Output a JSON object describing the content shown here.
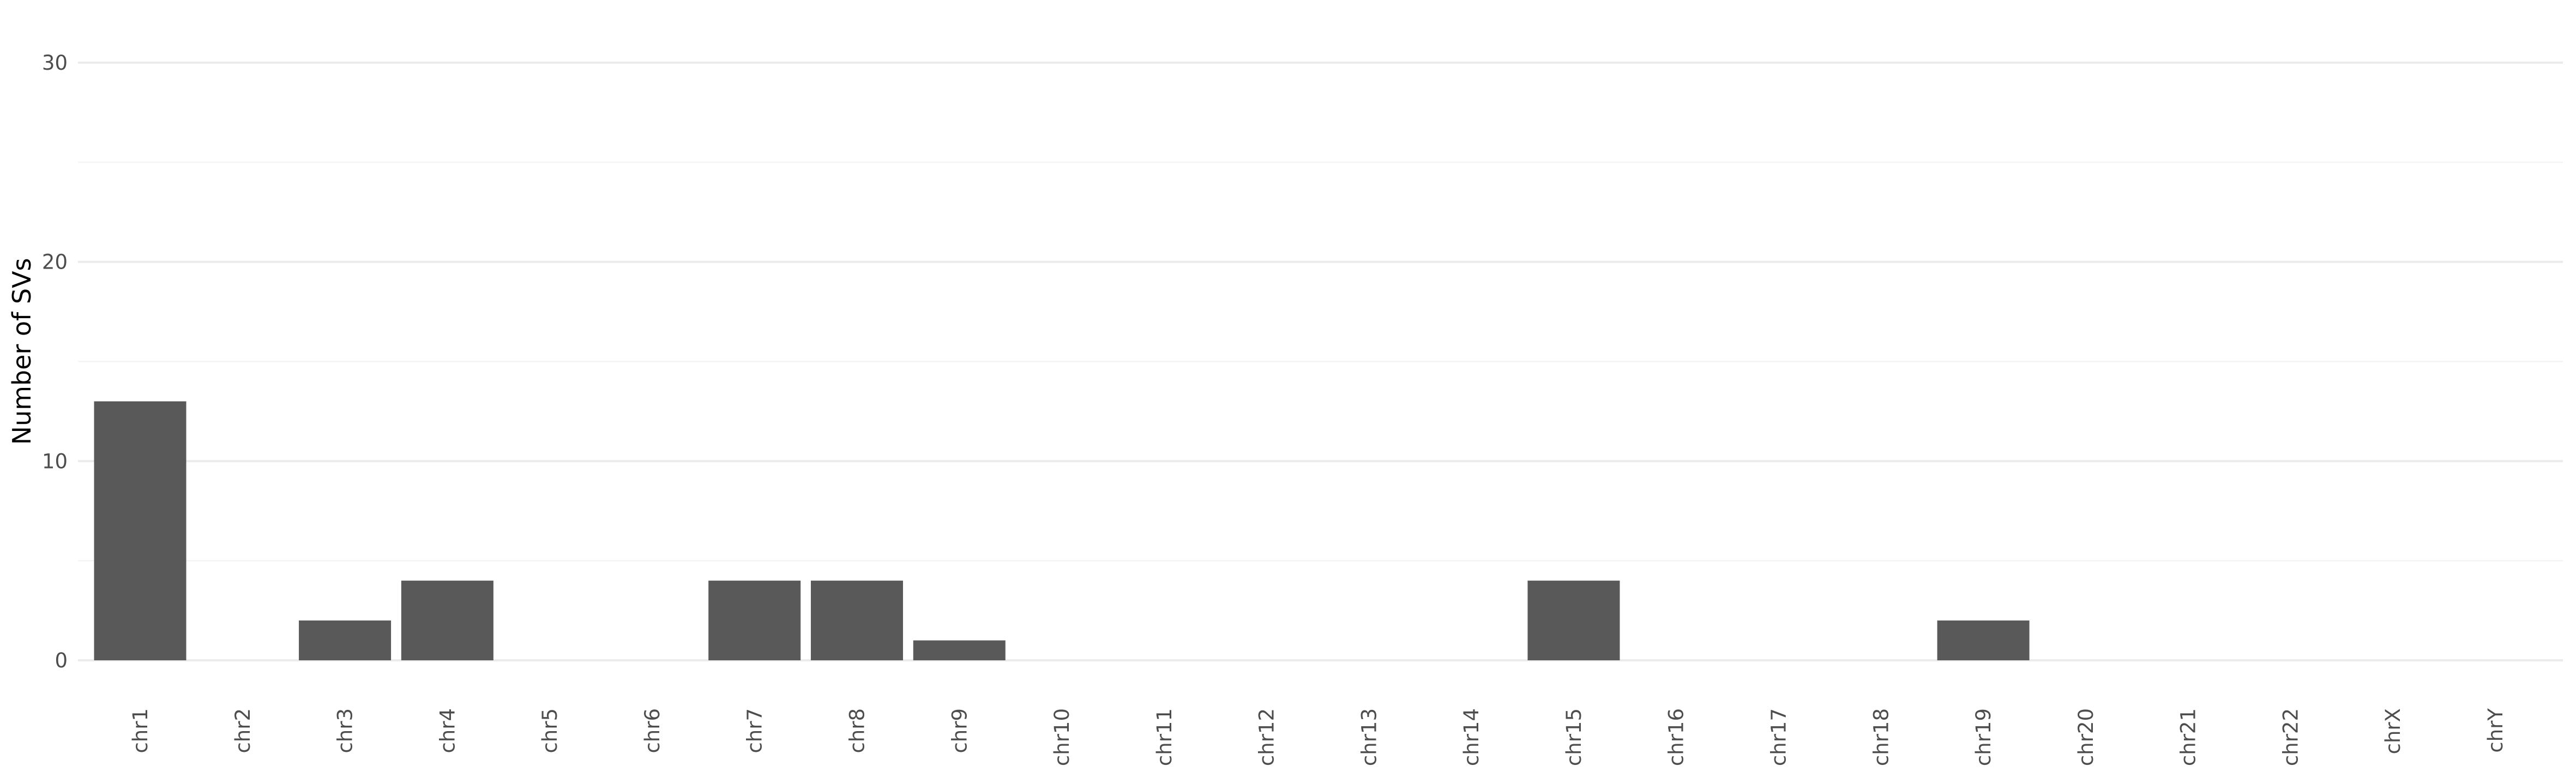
{
  "chart_data": {
    "type": "bar",
    "title": "",
    "xlabel": "",
    "ylabel": "Number of SVs",
    "categories": [
      "chr1",
      "chr2",
      "chr3",
      "chr4",
      "chr5",
      "chr6",
      "chr7",
      "chr8",
      "chr9",
      "chr10",
      "chr11",
      "chr12",
      "chr13",
      "chr14",
      "chr15",
      "chr16",
      "chr17",
      "chr18",
      "chr19",
      "chr20",
      "chr21",
      "chr22",
      "chrX",
      "chrY"
    ],
    "values": [
      13,
      0,
      2,
      4,
      0,
      0,
      4,
      4,
      1,
      0,
      0,
      0,
      0,
      0,
      4,
      0,
      0,
      0,
      2,
      0,
      0,
      0,
      0,
      0
    ],
    "ylim": [
      0,
      30
    ],
    "yticks": [
      0,
      10,
      20,
      30
    ],
    "grid": true,
    "bar_color": "#595959"
  }
}
